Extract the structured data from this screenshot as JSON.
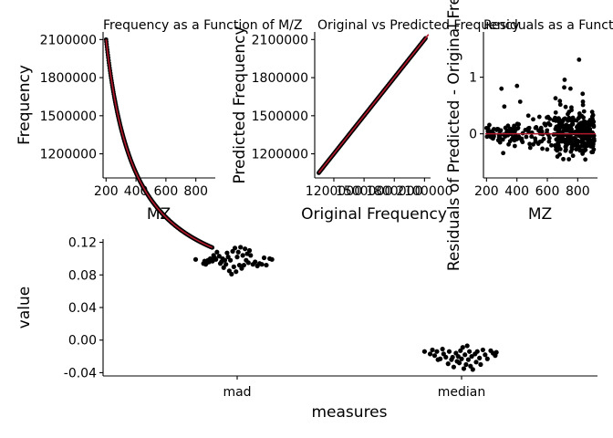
{
  "chart_data": [
    {
      "type": "scatter",
      "title": "Frequency as a Function of M/Z",
      "xlabel": "MZ",
      "ylabel": "Frequency",
      "xlim": [
        180,
        930
      ],
      "ylim": [
        1010000,
        2160000
      ],
      "x_ticks": [
        200,
        400,
        600,
        800
      ],
      "x_tick_labels": [
        "200",
        "400",
        "600",
        "800"
      ],
      "y_ticks": [
        1200000,
        1500000,
        1800000,
        2100000
      ],
      "y_tick_labels": [
        "1200000",
        "1500000",
        "1800000",
        "2100000"
      ],
      "grid": false,
      "relation": "frequency approximately 4.2e8 / MZ",
      "x_range": [
        200,
        910
      ],
      "point_color": "#000000",
      "fit_color": "#b2182b"
    },
    {
      "type": "scatter",
      "title": "Original vs Predicted Frequency",
      "xlabel": "Original Frequency",
      "ylabel": "Predicted Frequency",
      "xlim": [
        1010000,
        2160000
      ],
      "ylim": [
        1010000,
        2160000
      ],
      "x_ticks": [
        1200000,
        1500000,
        1800000,
        2100000
      ],
      "x_tick_labels": [
        "1200000",
        "1500000",
        "1800000",
        "2100000"
      ],
      "y_ticks": [
        1200000,
        1500000,
        1800000,
        2100000
      ],
      "y_tick_labels": [
        "1200000",
        "1500000",
        "1800000",
        "2100000"
      ],
      "grid": false,
      "relation": "predicted equals original",
      "x_range": [
        1050000,
        2110000
      ],
      "point_color": "#000000",
      "fit_color": "#b2182b"
    },
    {
      "type": "scatter",
      "title": "Residuals as a Function of M/Z",
      "xlabel": "MZ",
      "ylabel": "Residuals of Predicted - Original Frequency",
      "xlim": [
        180,
        930
      ],
      "ylim": [
        -0.78,
        1.8
      ],
      "x_ticks": [
        200,
        400,
        600,
        800
      ],
      "x_tick_labels": [
        "200",
        "400",
        "600",
        "800"
      ],
      "y_ticks": [
        0,
        1
      ],
      "y_tick_labels": [
        "0",
        "1"
      ],
      "grid": false,
      "reference_line": 0,
      "x_range": [
        200,
        910
      ],
      "point_color": "#000000",
      "line_color": "#b2182b"
    },
    {
      "type": "scatter",
      "title": "",
      "xlabel": "measures",
      "ylabel": "value",
      "categories": [
        "mad",
        "median"
      ],
      "ylim": [
        -0.044,
        0.124
      ],
      "y_ticks": [
        -0.04,
        0.0,
        0.04,
        0.08,
        0.12
      ],
      "y_tick_labels": [
        "-0.04",
        "0.00",
        "0.04",
        "0.08",
        "0.12"
      ],
      "grid": false,
      "point_color": "#000000",
      "series": [
        {
          "category": "mad",
          "offsets": [
            -0.37,
            -0.3,
            -0.29,
            -0.28,
            -0.27,
            -0.26,
            -0.25,
            -0.24,
            -0.23,
            -0.22,
            -0.21,
            -0.2,
            -0.19,
            -0.18,
            -0.16,
            -0.15,
            -0.14,
            -0.13,
            -0.12,
            -0.11,
            -0.1,
            -0.09,
            -0.08,
            -0.07,
            -0.06,
            -0.05,
            -0.04,
            -0.03,
            -0.02,
            -0.01,
            0.0,
            0.01,
            0.02,
            0.03,
            0.04,
            0.05,
            0.06,
            0.07,
            0.08,
            0.09,
            0.1,
            0.11,
            0.12,
            0.14,
            0.16,
            0.18,
            0.2,
            0.22,
            0.24,
            0.26,
            0.29,
            0.31
          ],
          "values": [
            0.099,
            0.094,
            0.097,
            0.093,
            0.095,
            0.098,
            0.096,
            0.1,
            0.099,
            0.097,
            0.104,
            0.101,
            0.099,
            0.108,
            0.103,
            0.094,
            0.096,
            0.1,
            0.089,
            0.098,
            0.093,
            0.107,
            0.102,
            0.085,
            0.098,
            0.081,
            0.109,
            0.09,
            0.113,
            0.084,
            0.102,
            0.108,
            0.092,
            0.114,
            0.088,
            0.104,
            0.092,
            0.112,
            0.098,
            0.106,
            0.095,
            0.11,
            0.104,
            0.093,
            0.096,
            0.091,
            0.094,
            0.093,
            0.101,
            0.092,
            0.1,
            0.099
          ]
        },
        {
          "category": "median",
          "offsets": [
            -0.33,
            -0.28,
            -0.26,
            -0.24,
            -0.22,
            -0.21,
            -0.19,
            -0.17,
            -0.16,
            -0.14,
            -0.12,
            -0.11,
            -0.09,
            -0.08,
            -0.07,
            -0.05,
            -0.04,
            -0.03,
            -0.02,
            -0.01,
            0.0,
            0.01,
            0.02,
            0.03,
            0.04,
            0.05,
            0.06,
            0.07,
            0.08,
            0.09,
            0.1,
            0.12,
            0.13,
            0.14,
            0.16,
            0.17,
            0.19,
            0.21,
            0.23,
            0.26,
            0.28,
            0.3,
            0.31
          ],
          "values": [
            -0.014,
            -0.017,
            -0.012,
            -0.019,
            -0.014,
            -0.024,
            -0.023,
            -0.011,
            -0.017,
            -0.021,
            -0.029,
            -0.014,
            -0.024,
            -0.021,
            -0.033,
            -0.016,
            -0.026,
            -0.02,
            -0.028,
            -0.013,
            -0.023,
            -0.009,
            -0.035,
            -0.018,
            -0.03,
            -0.007,
            -0.024,
            -0.014,
            -0.032,
            -0.02,
            -0.036,
            -0.017,
            -0.027,
            -0.014,
            -0.022,
            -0.03,
            -0.012,
            -0.018,
            -0.023,
            -0.013,
            -0.016,
            -0.019,
            -0.015
          ]
        }
      ]
    }
  ]
}
